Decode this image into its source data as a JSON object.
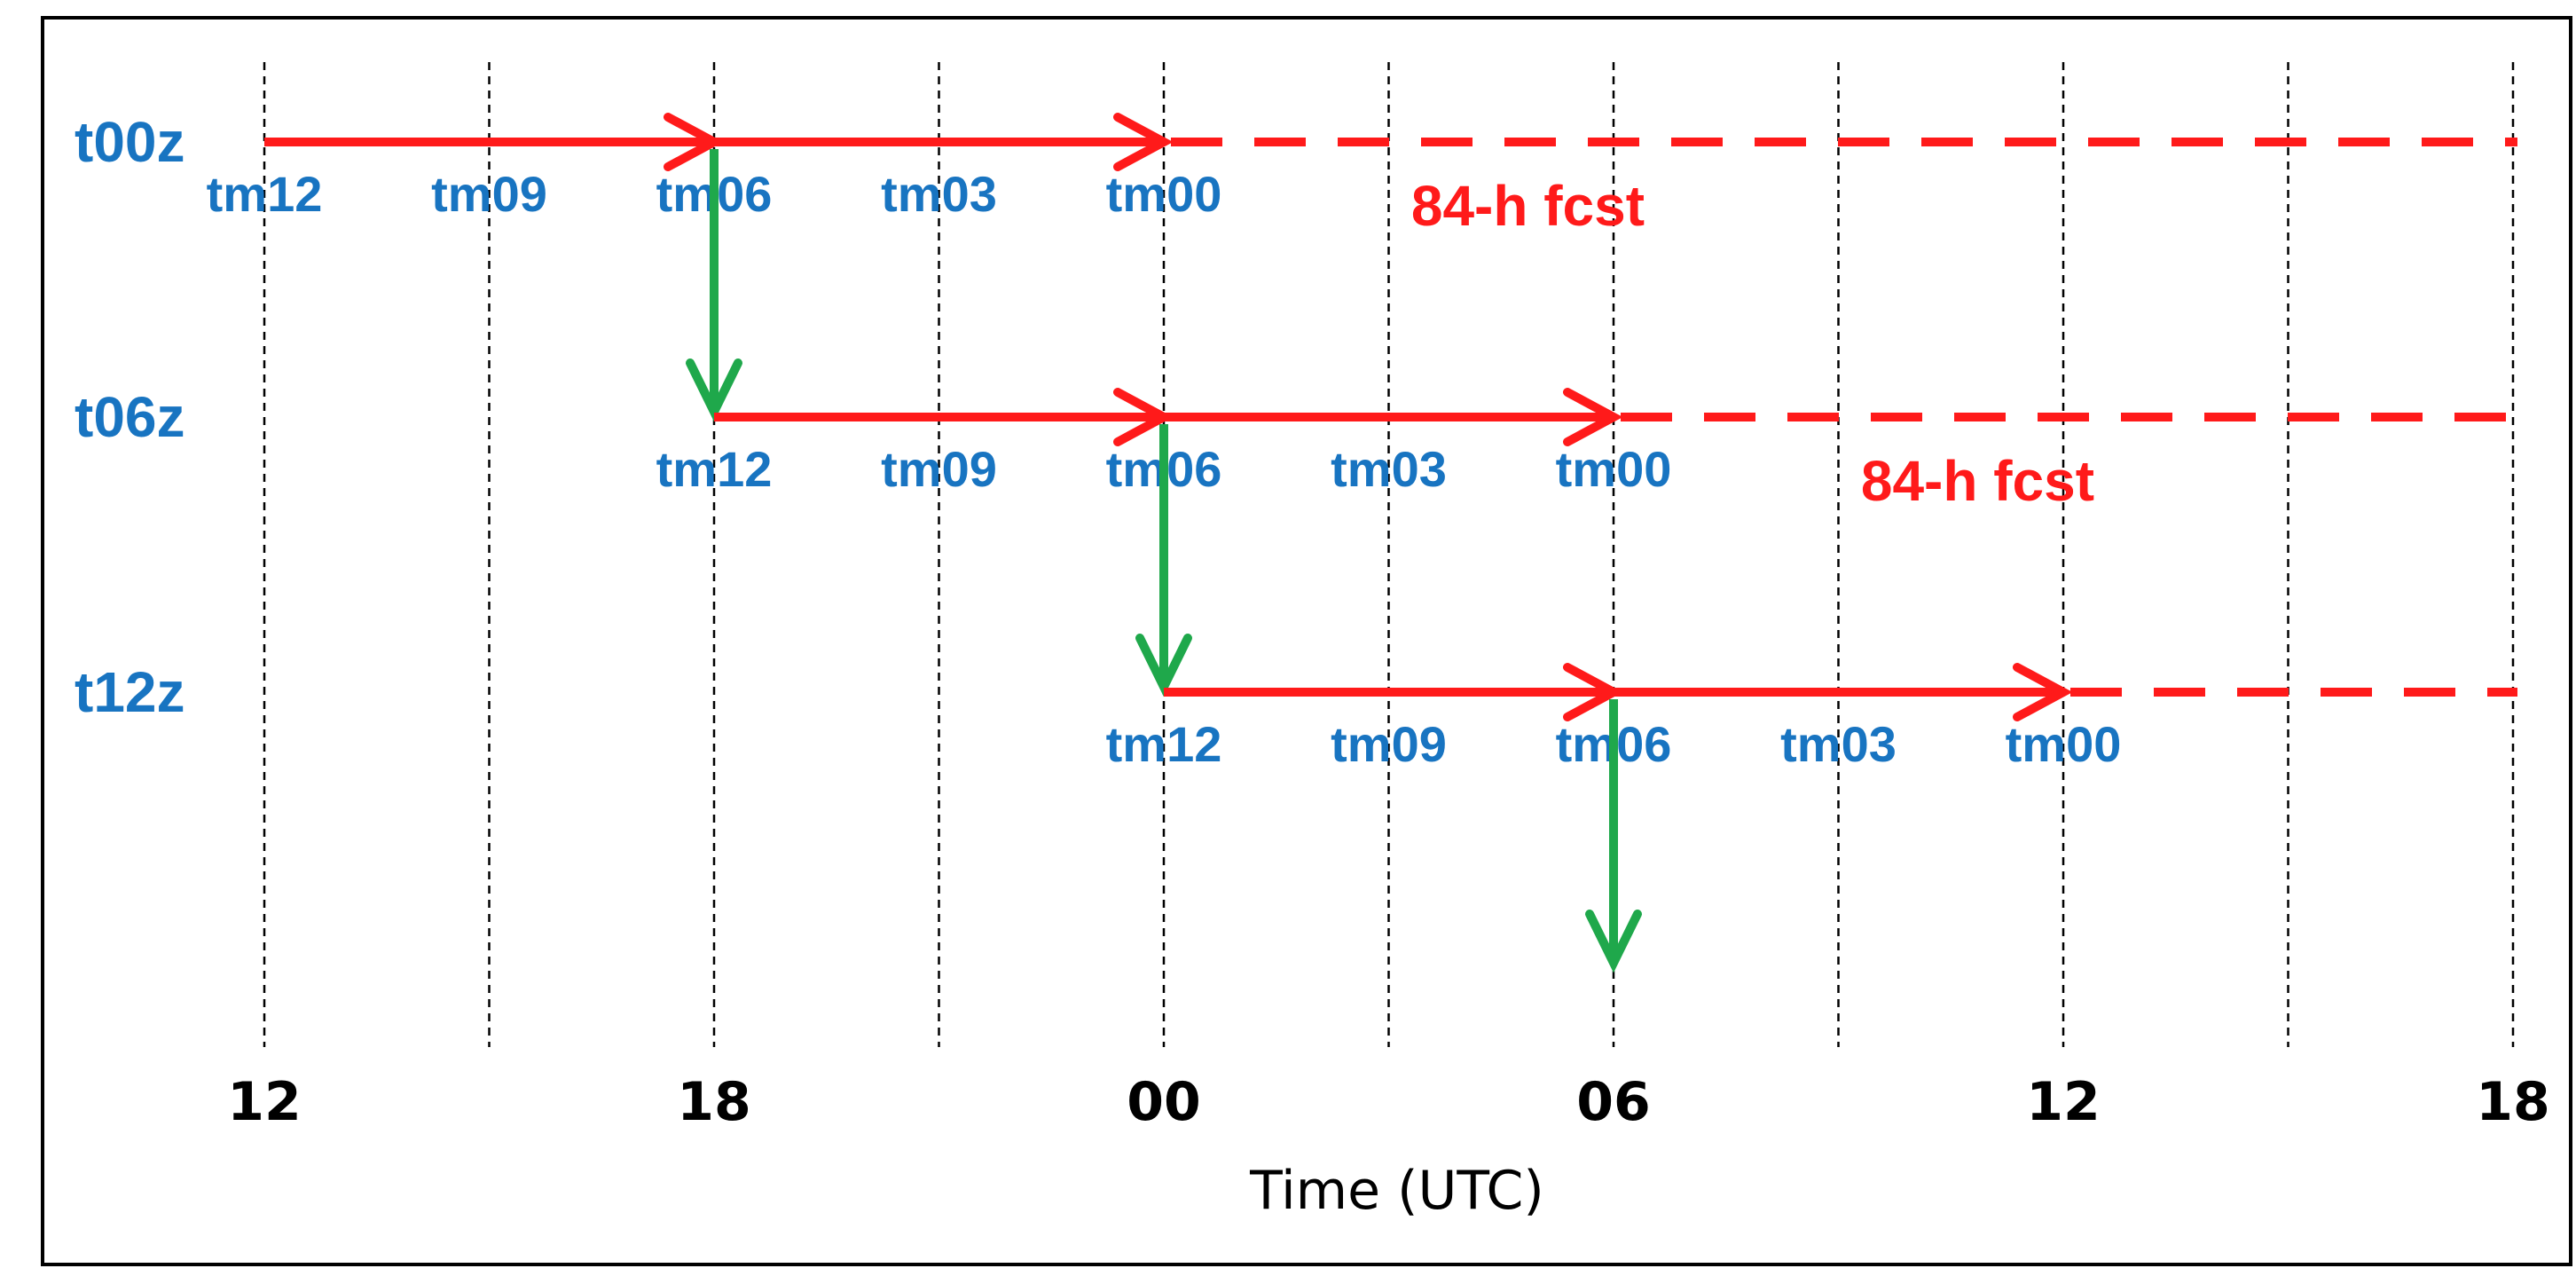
{
  "axis": {
    "title": "Time (UTC)",
    "ticks": [
      "12",
      "18",
      "00",
      "06",
      "12",
      "18"
    ]
  },
  "cycles": [
    {
      "name": "t00z",
      "start_step": 0,
      "steps": [
        "tm12",
        "tm09",
        "tm06",
        "tm03",
        "tm00"
      ],
      "forecast_label": "84-h fcst"
    },
    {
      "name": "t06z",
      "start_step": 2,
      "steps": [
        "tm12",
        "tm09",
        "tm06",
        "tm03",
        "tm00"
      ],
      "forecast_label": "84-h fcst"
    },
    {
      "name": "t12z",
      "start_step": 4,
      "steps": [
        "tm12",
        "tm09",
        "tm06",
        "tm03",
        "tm00"
      ],
      "forecast_label": ""
    }
  ],
  "colors": {
    "cycle_label": "#1874c1",
    "forward_arrow": "#ff1a1a",
    "handoff_arrow": "#1fa84b",
    "gridline": "#000000"
  }
}
